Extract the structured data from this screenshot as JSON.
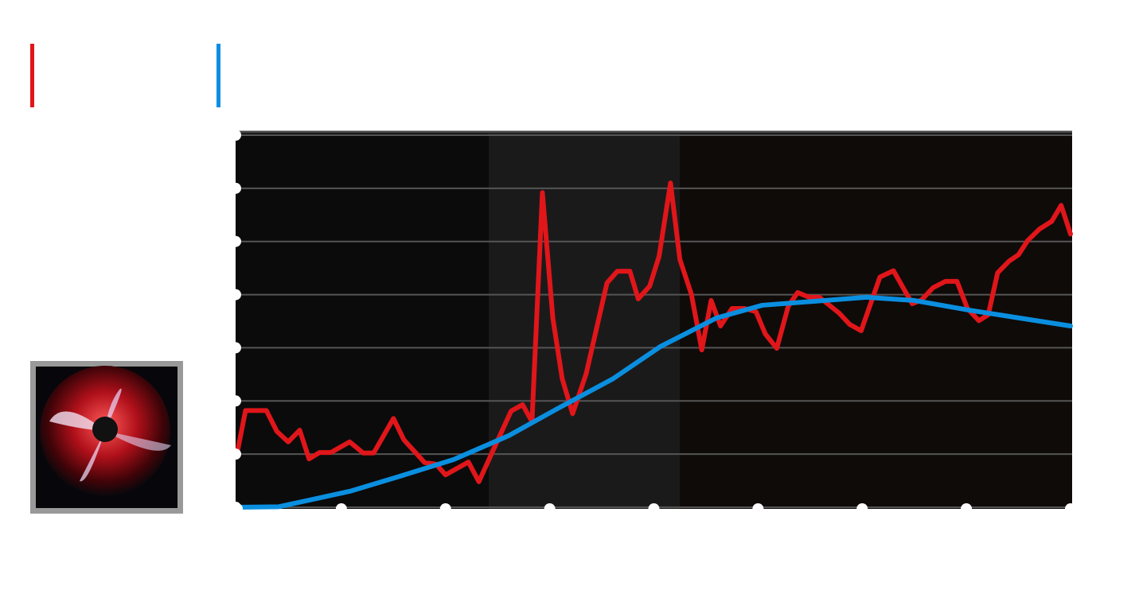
{
  "chart_data": {
    "type": "line",
    "xlim": [
      0,
      8
    ],
    "xticks": [
      0,
      1,
      2,
      3,
      4,
      5,
      6,
      7,
      8
    ],
    "ylim": [
      0,
      7
    ],
    "yticks": [
      0,
      1,
      2,
      3,
      4,
      5,
      6,
      7
    ],
    "grid": true,
    "series": [
      {
        "color": "#e0161a",
        "x": [
          0,
          0.08,
          0.28,
          0.38,
          0.49,
          0.6,
          0.69,
          0.79,
          0.9,
          1.08,
          1.21,
          1.31,
          1.5,
          1.6,
          1.8,
          1.91,
          2.0,
          2.22,
          2.32,
          2.51,
          2.63,
          2.74,
          2.83,
          2.93,
          3.03,
          3.12,
          3.22,
          3.35,
          3.55,
          3.65,
          3.77,
          3.85,
          3.96,
          4.05,
          4.16,
          4.25,
          4.36,
          4.46,
          4.55,
          4.64,
          4.75,
          4.87,
          4.98,
          5.07,
          5.18,
          5.29,
          5.38,
          5.49,
          5.59,
          5.78,
          5.88,
          5.99,
          6.17,
          6.3,
          6.48,
          6.57,
          6.68,
          6.8,
          6.91,
          7.01,
          7.12,
          7.21,
          7.3,
          7.41,
          7.5,
          7.59,
          7.7,
          7.82,
          7.91,
          8.0
        ],
        "values": [
          1.02,
          1.82,
          1.82,
          1.43,
          1.23,
          1.45,
          0.91,
          1.03,
          1.03,
          1.23,
          1.02,
          1.02,
          1.67,
          1.27,
          0.84,
          0.81,
          0.61,
          0.85,
          0.48,
          1.3,
          1.81,
          1.93,
          1.61,
          5.92,
          3.56,
          2.42,
          1.76,
          2.51,
          4.22,
          4.44,
          4.44,
          3.92,
          4.16,
          4.72,
          6.1,
          4.66,
          4.01,
          2.96,
          3.89,
          3.41,
          3.74,
          3.74,
          3.68,
          3.26,
          2.99,
          3.78,
          4.04,
          3.95,
          3.95,
          3.65,
          3.44,
          3.32,
          4.33,
          4.45,
          3.83,
          3.9,
          4.13,
          4.25,
          4.25,
          3.74,
          3.51,
          3.62,
          4.41,
          4.63,
          4.75,
          5.02,
          5.23,
          5.38,
          5.68,
          5.14
        ]
      },
      {
        "color": "#0a8fe0",
        "x": [
          0,
          0.4,
          1.08,
          1.54,
          2.08,
          2.61,
          3.07,
          3.61,
          4.06,
          4.6,
          5.04,
          6.04,
          6.5,
          7.02,
          8.0
        ],
        "values": [
          0,
          0.01,
          0.3,
          0.57,
          0.9,
          1.35,
          1.85,
          2.42,
          3.02,
          3.56,
          3.8,
          3.95,
          3.89,
          3.71,
          3.41
        ]
      }
    ]
  }
}
